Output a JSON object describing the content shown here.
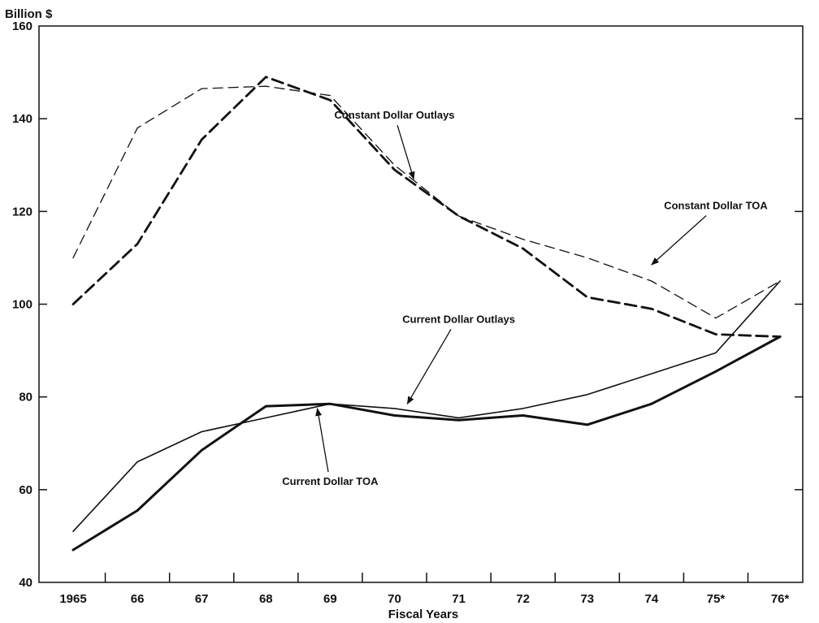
{
  "chart_data": {
    "type": "line",
    "ylabel": "Billion $",
    "xlabel": "Fiscal Years",
    "categories": [
      "1965",
      "66",
      "67",
      "68",
      "69",
      "70",
      "71",
      "72",
      "73",
      "74",
      "75*",
      "76*"
    ],
    "ylim": [
      40,
      160
    ],
    "yticks": [
      40,
      60,
      80,
      100,
      120,
      140,
      160
    ],
    "grid": false,
    "series": [
      {
        "name": "Constant Dollar Outlays",
        "style": "dashed-thin",
        "values": [
          110,
          138,
          146.5,
          147,
          145,
          130,
          119,
          114,
          110,
          105,
          97,
          105
        ]
      },
      {
        "name": "Constant Dollar TOA",
        "style": "dashed-thick",
        "values": [
          100,
          113,
          135.5,
          149,
          144,
          129,
          119,
          112,
          101.5,
          99,
          93.5,
          93
        ]
      },
      {
        "name": "Current Dollar Outlays",
        "style": "solid-thin",
        "values": [
          51,
          66,
          72.5,
          75.5,
          78.5,
          77.5,
          75.5,
          77.5,
          80.5,
          85,
          89.5,
          105
        ]
      },
      {
        "name": "Current Dollar TOA",
        "style": "solid-thick",
        "values": [
          47,
          55.5,
          68.5,
          78,
          78.5,
          76,
          75,
          76,
          74,
          78.5,
          85.5,
          93
        ]
      }
    ],
    "annotations": [
      {
        "text": "Constant Dollar Outlays",
        "anchor": [
          70,
          140
        ],
        "arrow_to": [
          70.3,
          127
        ]
      },
      {
        "text": "Constant Dollar TOA",
        "anchor": [
          75,
          120.5
        ],
        "arrow_to": [
          74.0,
          108.5
        ]
      },
      {
        "text": "Current Dollar Outlays",
        "anchor": [
          71,
          96
        ],
        "arrow_to": [
          70.2,
          78.5
        ]
      },
      {
        "text": "Current Dollar TOA",
        "anchor": [
          69,
          61
        ],
        "arrow_to": [
          68.8,
          77.5
        ]
      }
    ]
  }
}
